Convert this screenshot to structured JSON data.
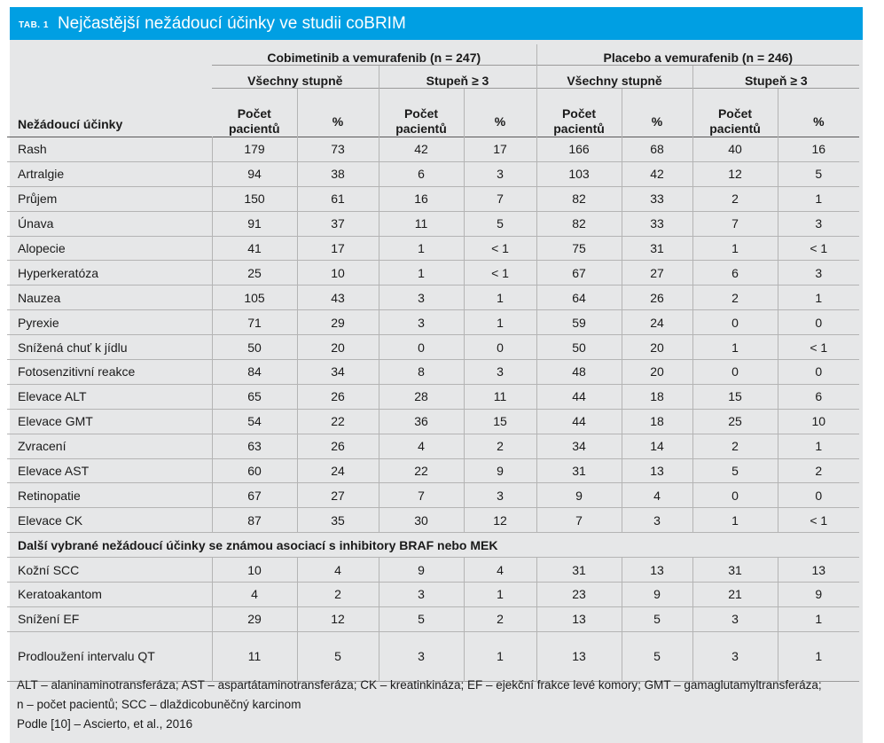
{
  "header": {
    "tab_label": "TAB. 1",
    "title": "Nejčastější nežádoucí účinky ve studii coBRIM"
  },
  "table": {
    "row_header": "Nežádoucí účinky",
    "groups": [
      "Cobimetinib a vemurafenib (n = 247)",
      "Placebo a vemurafenib (n = 246)"
    ],
    "subgroups": [
      "Všechny stupně",
      "Stupeň ≥ 3",
      "Všechny stupně",
      "Stupeň ≥ 3"
    ],
    "col_count": "Počet pacientů",
    "col_pct": "%",
    "rows": [
      {
        "name": "Rash",
        "v": [
          "179",
          "73",
          "42",
          "17",
          "166",
          "68",
          "40",
          "16"
        ]
      },
      {
        "name": "Artralgie",
        "v": [
          "94",
          "38",
          "6",
          "3",
          "103",
          "42",
          "12",
          "5"
        ]
      },
      {
        "name": "Průjem",
        "v": [
          "150",
          "61",
          "16",
          "7",
          "82",
          "33",
          "2",
          "1"
        ]
      },
      {
        "name": "Únava",
        "v": [
          "91",
          "37",
          "11",
          "5",
          "82",
          "33",
          "7",
          "3"
        ]
      },
      {
        "name": "Alopecie",
        "v": [
          "41",
          "17",
          "1",
          "< 1",
          "75",
          "31",
          "1",
          "< 1"
        ]
      },
      {
        "name": "Hyperkeratóza",
        "v": [
          "25",
          "10",
          "1",
          "< 1",
          "67",
          "27",
          "6",
          "3"
        ]
      },
      {
        "name": "Nauzea",
        "v": [
          "105",
          "43",
          "3",
          "1",
          "64",
          "26",
          "2",
          "1"
        ]
      },
      {
        "name": "Pyrexie",
        "v": [
          "71",
          "29",
          "3",
          "1",
          "59",
          "24",
          "0",
          "0"
        ]
      },
      {
        "name": "Snížená chuť k jídlu",
        "v": [
          "50",
          "20",
          "0",
          "0",
          "50",
          "20",
          "1",
          "< 1"
        ]
      },
      {
        "name": "Fotosenzitivní reakce",
        "v": [
          "84",
          "34",
          "8",
          "3",
          "48",
          "20",
          "0",
          "0"
        ]
      },
      {
        "name": "Elevace ALT",
        "v": [
          "65",
          "26",
          "28",
          "11",
          "44",
          "18",
          "15",
          "6"
        ]
      },
      {
        "name": "Elevace GMT",
        "v": [
          "54",
          "22",
          "36",
          "15",
          "44",
          "18",
          "25",
          "10"
        ]
      },
      {
        "name": "Zvracení",
        "v": [
          "63",
          "26",
          "4",
          "2",
          "34",
          "14",
          "2",
          "1"
        ]
      },
      {
        "name": "Elevace AST",
        "v": [
          "60",
          "24",
          "22",
          "9",
          "31",
          "13",
          "5",
          "2"
        ]
      },
      {
        "name": "Retinopatie",
        "v": [
          "67",
          "27",
          "7",
          "3",
          "9",
          "4",
          "0",
          "0"
        ]
      },
      {
        "name": "Elevace CK",
        "v": [
          "87",
          "35",
          "30",
          "12",
          "7",
          "3",
          "1",
          "< 1"
        ]
      }
    ],
    "section_title": "Další vybrané nežádoucí účinky se známou asociací s inhibitory BRAF nebo MEK",
    "section_rows": [
      {
        "name": "Kožní SCC",
        "v": [
          "10",
          "4",
          "9",
          "4",
          "31",
          "13",
          "31",
          "13"
        ]
      },
      {
        "name": "Keratoakantom",
        "v": [
          "4",
          "2",
          "3",
          "1",
          "23",
          "9",
          "21",
          "9"
        ]
      },
      {
        "name": "Snížení EF",
        "v": [
          "29",
          "12",
          "5",
          "2",
          "13",
          "5",
          "3",
          "1"
        ]
      },
      {
        "name": "Prodloužení intervalu QT",
        "v": [
          "11",
          "5",
          "3",
          "1",
          "13",
          "5",
          "3",
          "1"
        ]
      }
    ]
  },
  "footnote": {
    "line1": "ALT – alaninaminotransferáza; AST – aspartátaminotransferáza; CK – kreatinkináza; EF – ejekční frakce levé komory; GMT – gamaglutamyltransferáza;",
    "line2": "n – počet pacientů; SCC – dlaždicobuněčný karcinom",
    "source": "Podle [10] – Ascierto, et al., 2016"
  },
  "colors": {
    "accent": "#009fe3",
    "panel": "#e6e7e8"
  }
}
